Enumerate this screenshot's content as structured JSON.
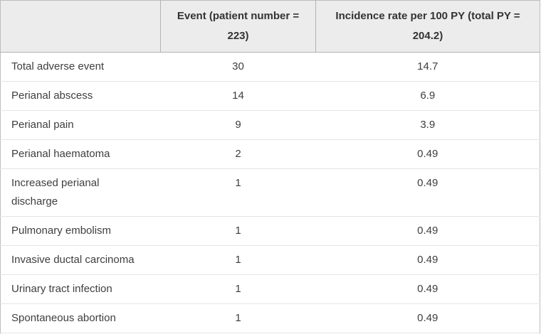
{
  "table": {
    "columns": [
      "",
      "Event (patient number = 223)",
      "Incidence rate per 100 PY (total PY = 204.2)"
    ],
    "rows": [
      {
        "event": "Total adverse event",
        "count": "30",
        "rate": "14.7"
      },
      {
        "event": "Perianal abscess",
        "count": "14",
        "rate": "6.9"
      },
      {
        "event": "Perianal pain",
        "count": "9",
        "rate": "3.9"
      },
      {
        "event": "Perianal haematoma",
        "count": "2",
        "rate": "0.49"
      },
      {
        "event": "Increased perianal discharge",
        "count": "1",
        "rate": "0.49"
      },
      {
        "event": "Pulmonary embolism",
        "count": "1",
        "rate": "0.49"
      },
      {
        "event": "Invasive ductal carcinoma",
        "count": "1",
        "rate": "0.49"
      },
      {
        "event": "Urinary tract infection",
        "count": "1",
        "rate": "0.49"
      },
      {
        "event": "Spontaneous abortion",
        "count": "1",
        "rate": "0.49"
      }
    ]
  },
  "colors": {
    "header_bg": "#ececec",
    "outer_border": "#bcbcbc",
    "header_border": "#b2b2b2",
    "row_divider": "#e4e4e4",
    "body_text": "#3e3e3e",
    "header_text": "#333333"
  },
  "chart_data": {
    "type": "table",
    "columns": [
      "",
      "Event (patient number = 223)",
      "Incidence rate per 100 PY (total PY = 204.2)"
    ],
    "rows": [
      [
        "Total adverse event",
        30,
        14.7
      ],
      [
        "Perianal abscess",
        14,
        6.9
      ],
      [
        "Perianal pain",
        9,
        3.9
      ],
      [
        "Perianal haematoma",
        2,
        0.49
      ],
      [
        "Increased perianal discharge",
        1,
        0.49
      ],
      [
        "Pulmonary embolism",
        1,
        0.49
      ],
      [
        "Invasive ductal carcinoma",
        1,
        0.49
      ],
      [
        "Urinary tract infection",
        1,
        0.49
      ],
      [
        "Spontaneous abortion",
        1,
        0.49
      ]
    ]
  }
}
